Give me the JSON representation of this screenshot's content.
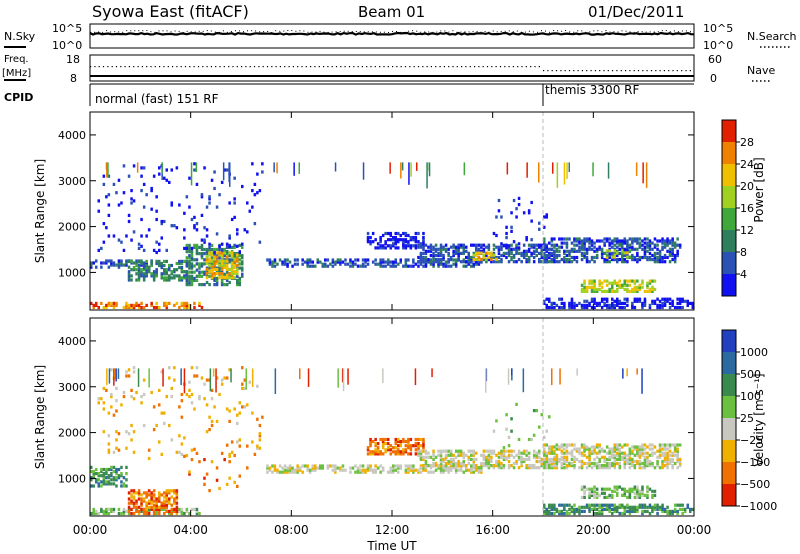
{
  "header": {
    "title": "Syowa East (fitACF)",
    "beam": "Beam 01",
    "date": "01/Dec/2011"
  },
  "strips": {
    "nsky": {
      "label": "N.Sky",
      "ticks": [
        "10^5",
        "10^0"
      ],
      "right_label": "N.Search",
      "right_ticks": [
        "10^5",
        "10^0"
      ]
    },
    "freq": {
      "label_line1": "Freq.",
      "label_line2": "[MHz]",
      "ticks": [
        "18",
        "8"
      ],
      "right_label": "Nave",
      "right_ticks": [
        "60",
        "0"
      ]
    },
    "cpid": {
      "label": "CPID",
      "segments": [
        "normal (fast) 151 RF",
        "themis 3300 RF"
      ],
      "change_time_hours": 18.0
    }
  },
  "chart_data": [
    {
      "type": "heatmap",
      "parameter": "Power",
      "ylabel": "Slant Range [km]",
      "xlabel": "",
      "xlim_hours": [
        0,
        24
      ],
      "ylim": [
        180,
        4500
      ],
      "xticks": [
        "00:00",
        "04:00",
        "08:00",
        "12:00",
        "16:00",
        "20:00",
        "00:00"
      ],
      "yticks": [
        1000,
        2000,
        3000,
        4000
      ],
      "colorbar": {
        "label": "Power [dB]",
        "tick_labels": [
          "4",
          "8",
          "12",
          "16",
          "20",
          "24",
          "28"
        ],
        "colors": [
          "#1010f0",
          "#2a52b5",
          "#2f7f5f",
          "#40a83a",
          "#a0d020",
          "#f0c000",
          "#f08000",
          "#e02000"
        ]
      },
      "echo_regions": [
        {
          "t0": 0.0,
          "t1": 4.5,
          "r0": 200,
          "r1": 320,
          "level": 6
        },
        {
          "t0": 0.0,
          "t1": 2.5,
          "r0": 1080,
          "r1": 1220,
          "level": 1
        },
        {
          "t0": 1.5,
          "t1": 4.0,
          "r0": 800,
          "r1": 1250,
          "level": 2
        },
        {
          "t0": 3.8,
          "t1": 6.0,
          "r0": 700,
          "r1": 1600,
          "level": 2
        },
        {
          "t0": 4.6,
          "t1": 5.8,
          "r0": 850,
          "r1": 1400,
          "level": 5
        },
        {
          "t0": 0.3,
          "t1": 6.8,
          "r0": 1400,
          "r1": 3400,
          "level": 0
        },
        {
          "t0": 7.0,
          "t1": 15.5,
          "r0": 1100,
          "r1": 1240,
          "level": 1
        },
        {
          "t0": 11.0,
          "t1": 13.2,
          "r0": 1500,
          "r1": 1850,
          "level": 0
        },
        {
          "t0": 13.0,
          "t1": 18.5,
          "r0": 1200,
          "r1": 1600,
          "level": 1
        },
        {
          "t0": 15.2,
          "t1": 16.2,
          "r0": 1250,
          "r1": 1400,
          "level": 5
        },
        {
          "t0": 16.0,
          "t1": 18.3,
          "r0": 1500,
          "r1": 2600,
          "level": 0
        },
        {
          "t0": 18.0,
          "t1": 23.5,
          "r0": 1200,
          "r1": 1700,
          "level": 1
        },
        {
          "t0": 19.5,
          "t1": 22.5,
          "r0": 550,
          "r1": 800,
          "level": 4
        },
        {
          "t0": 20.5,
          "t1": 21.5,
          "r0": 1300,
          "r1": 1450,
          "level": 4
        },
        {
          "t0": 18.0,
          "t1": 24.0,
          "r0": 200,
          "r1": 400,
          "level": 0
        }
      ]
    },
    {
      "type": "heatmap",
      "parameter": "Velocity",
      "ylabel": "Slant Range [km]",
      "xlabel": "Time UT",
      "xlim_hours": [
        0,
        24
      ],
      "ylim": [
        180,
        4500
      ],
      "xticks": [
        "00:00",
        "04:00",
        "08:00",
        "12:00",
        "16:00",
        "20:00",
        "00:00"
      ],
      "yticks": [
        1000,
        2000,
        3000,
        4000
      ],
      "colorbar": {
        "label": "Velocity [m s⁻¹]",
        "tick_labels": [
          "1000",
          "500",
          "100",
          "25",
          "−25",
          "−100",
          "−500",
          "−1000"
        ],
        "colors": [
          "#2040c0",
          "#2a6aa0",
          "#3a8a50",
          "#6cc040",
          "#c8c8c0",
          "#f0b000",
          "#f07000",
          "#e02000"
        ]
      },
      "echo_regions": [
        {
          "t0": 0.0,
          "t1": 4.5,
          "r0": 200,
          "r1": 320,
          "level": 3
        },
        {
          "t0": 0.0,
          "t1": 1.5,
          "r0": 800,
          "r1": 1250,
          "level": 2
        },
        {
          "t0": 1.5,
          "t1": 3.5,
          "r0": 200,
          "r1": 700,
          "level": 6
        },
        {
          "t0": 3.8,
          "t1": 6.2,
          "r0": 700,
          "r1": 1700,
          "level": 6
        },
        {
          "t0": 0.3,
          "t1": 6.8,
          "r0": 1400,
          "r1": 3400,
          "level": 5
        },
        {
          "t0": 7.0,
          "t1": 15.5,
          "r0": 1100,
          "r1": 1240,
          "level": 4
        },
        {
          "t0": 11.0,
          "t1": 13.2,
          "r0": 1500,
          "r1": 1850,
          "level": 6
        },
        {
          "t0": 13.0,
          "t1": 18.5,
          "r0": 1200,
          "r1": 1600,
          "level": 4
        },
        {
          "t0": 16.0,
          "t1": 18.3,
          "r0": 1500,
          "r1": 2600,
          "level": 3
        },
        {
          "t0": 18.0,
          "t1": 23.5,
          "r0": 1200,
          "r1": 1700,
          "level": 4
        },
        {
          "t0": 19.5,
          "t1": 22.5,
          "r0": 550,
          "r1": 800,
          "level": 3
        },
        {
          "t0": 18.0,
          "t1": 24.0,
          "r0": 200,
          "r1": 400,
          "level": 2
        }
      ]
    }
  ]
}
